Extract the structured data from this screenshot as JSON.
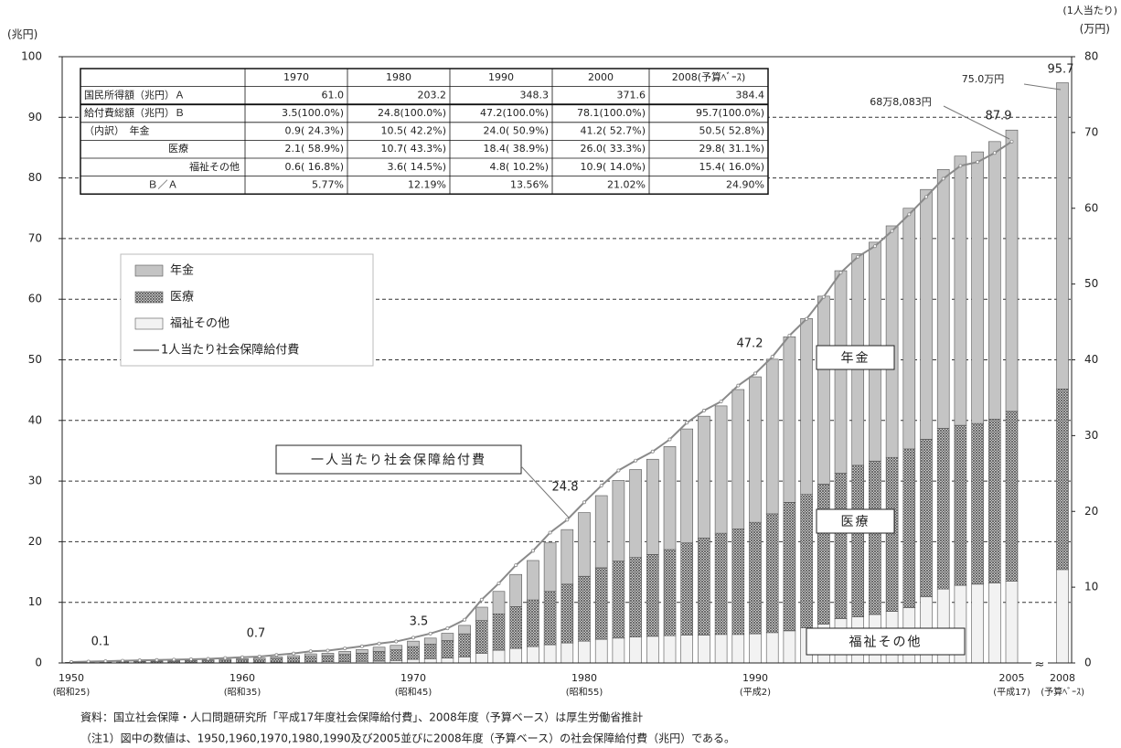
{
  "chart_data": {
    "type": "bar",
    "stacked": true,
    "y_label": "(兆円)",
    "y2_label": "(1人当たり)",
    "y2_unit": "(万円)",
    "categories": [
      "1950",
      null,
      null,
      null,
      null,
      null,
      null,
      null,
      null,
      null,
      "1960",
      null,
      null,
      null,
      null,
      null,
      null,
      null,
      null,
      null,
      "1970",
      null,
      null,
      null,
      null,
      null,
      null,
      null,
      null,
      null,
      "1980",
      null,
      null,
      null,
      null,
      null,
      null,
      null,
      null,
      null,
      "1990",
      null,
      null,
      null,
      null,
      null,
      null,
      null,
      null,
      null,
      null,
      null,
      null,
      null,
      null,
      "2005",
      "2008"
    ],
    "category_sublabels": [
      "(昭和25)",
      null,
      null,
      null,
      null,
      null,
      null,
      null,
      null,
      null,
      "(昭和35)",
      null,
      null,
      null,
      null,
      null,
      null,
      null,
      null,
      null,
      "(昭和45)",
      null,
      null,
      null,
      null,
      null,
      null,
      null,
      null,
      null,
      "(昭和55)",
      null,
      null,
      null,
      null,
      null,
      null,
      null,
      null,
      null,
      "(平成2)",
      null,
      null,
      null,
      null,
      null,
      null,
      null,
      null,
      null,
      null,
      null,
      null,
      null,
      null,
      "(平成17)",
      "(予算ﾍﾞｰｽ)"
    ],
    "series": [
      {
        "name": "年金",
        "color": "#c4c4c4",
        "values": [
          0.03,
          0.04,
          0.06,
          0.07,
          0.08,
          0.1,
          0.11,
          0.12,
          0.13,
          0.16,
          0.2,
          0.21,
          0.27,
          0.32,
          0.4,
          0.4,
          0.49,
          0.58,
          0.7,
          0.72,
          0.9,
          1.0,
          1.2,
          1.4,
          2.2,
          3.7,
          5.3,
          6.5,
          8.0,
          9.0,
          10.5,
          11.9,
          13.3,
          14.5,
          15.7,
          17.0,
          18.8,
          20.1,
          21.0,
          23.0,
          24.0,
          25.5,
          27.3,
          29.0,
          31.0,
          33.4,
          34.9,
          36.1,
          38.2,
          39.7,
          41.2,
          42.7,
          44.4,
          44.8,
          45.8,
          46.4,
          50.5
        ]
      },
      {
        "name": "医療",
        "color": "#555555",
        "hatch": true,
        "values": [
          0.05,
          0.08,
          0.1,
          0.13,
          0.16,
          0.19,
          0.22,
          0.25,
          0.29,
          0.35,
          0.4,
          0.48,
          0.6,
          0.73,
          0.92,
          1.0,
          1.18,
          1.36,
          1.6,
          1.78,
          2.1,
          2.4,
          2.9,
          3.8,
          5.4,
          6.0,
          6.9,
          7.7,
          8.8,
          9.7,
          10.7,
          11.8,
          12.7,
          13.1,
          13.5,
          14.2,
          15.2,
          16.0,
          16.7,
          17.4,
          18.4,
          19.6,
          21.2,
          22.0,
          23.1,
          24.0,
          25.0,
          25.3,
          25.4,
          26.2,
          26.0,
          26.5,
          26.4,
          26.5,
          27.0,
          28.0,
          29.8
        ]
      },
      {
        "name": "福祉その他",
        "color": "#f2f2f2",
        "values": [
          0.02,
          0.03,
          0.04,
          0.05,
          0.06,
          0.06,
          0.07,
          0.08,
          0.08,
          0.09,
          0.1,
          0.11,
          0.13,
          0.15,
          0.18,
          0.2,
          0.23,
          0.26,
          0.3,
          0.4,
          0.6,
          0.7,
          0.8,
          1.0,
          1.6,
          2.1,
          2.4,
          2.7,
          3.0,
          3.3,
          3.6,
          3.9,
          4.1,
          4.3,
          4.4,
          4.5,
          4.6,
          4.6,
          4.7,
          4.7,
          4.8,
          5.0,
          5.3,
          5.8,
          6.4,
          7.3,
          7.6,
          8.0,
          8.5,
          9.1,
          10.9,
          12.2,
          12.8,
          13.0,
          13.2,
          13.5,
          15.4
        ]
      },
      {
        "name": "1人当たり社会保障給付費",
        "type": "line",
        "axis": "y2",
        "color": "#8a8a8a",
        "values": [
          0.12,
          0.18,
          0.23,
          0.29,
          0.34,
          0.39,
          0.44,
          0.49,
          0.54,
          0.65,
          0.75,
          0.85,
          1.05,
          1.25,
          1.54,
          1.63,
          1.92,
          2.2,
          2.57,
          2.83,
          3.34,
          3.88,
          4.57,
          5.7,
          8.35,
          10.5,
          12.9,
          14.8,
          17.2,
          18.9,
          21.2,
          23.4,
          25.4,
          26.7,
          27.9,
          29.5,
          31.7,
          33.3,
          34.5,
          36.6,
          38.2,
          40.4,
          43.2,
          45.4,
          48.3,
          51.5,
          53.6,
          55.0,
          57.0,
          59.2,
          61.5,
          63.9,
          65.6,
          66.1,
          67.3,
          68.8,
          null
        ]
      }
    ],
    "ylim": [
      0,
      100
    ],
    "yticks": [
      0,
      10,
      20,
      30,
      40,
      50,
      60,
      70,
      80,
      90,
      100
    ],
    "y2lim": [
      0,
      80
    ],
    "y2ticks": [
      0,
      10,
      20,
      30,
      40,
      50,
      60,
      70,
      80
    ],
    "grid": true,
    "annotations": [
      "0.1",
      "0.7",
      "3.5",
      "24.8",
      "47.2",
      "87.9",
      "95.7",
      "68万8,083円",
      "75.0万円"
    ],
    "boxed_labels": [
      "年金",
      "医療",
      "福祉その他",
      "一人当たり社会保障給付費"
    ],
    "table": {
      "header": [
        "1970",
        "1980",
        "1990",
        "2000",
        "2008(予算ﾍﾞｰｽ)"
      ],
      "rows": [
        [
          "国民所得額（兆円）Ａ",
          "61.0",
          "203.2",
          "348.3",
          "371.6",
          "384.4"
        ],
        [
          "給付費総額（兆円）Ｂ",
          "3.5(100.0%)",
          "24.8(100.0%)",
          "47.2(100.0%)",
          "78.1(100.0%)",
          "95.7(100.0%)"
        ],
        [
          "（内訳）　年金",
          "0.9( 24.3%)",
          "10.5( 42.2%)",
          "24.0( 50.9%)",
          "41.2( 52.7%)",
          "50.5( 52.8%)"
        ],
        [
          "医療",
          "2.1( 58.9%)",
          "10.7( 43.3%)",
          "18.4( 38.9%)",
          "26.0( 33.3%)",
          "29.8( 31.1%)"
        ],
        [
          "福祉その他",
          "0.6( 16.8%)",
          "3.6( 14.5%)",
          "4.8( 10.2%)",
          "10.9( 14.0%)",
          "15.4( 16.0%)"
        ],
        [
          "Ｂ／Ａ",
          "5.77%",
          "12.19%",
          "13.56%",
          "21.02%",
          "24.90%"
        ]
      ]
    },
    "source": "資料：国立社会保障・人口問題研究所「平成17年度社会保障給付費」、2008年度（予算ベース）は厚生労働省推計",
    "note": "（注1）図中の数値は、1950,1960,1970,1980,1990及び2005並びに2008年度（予算ベース）の社会保障給付費（兆円）である。"
  }
}
